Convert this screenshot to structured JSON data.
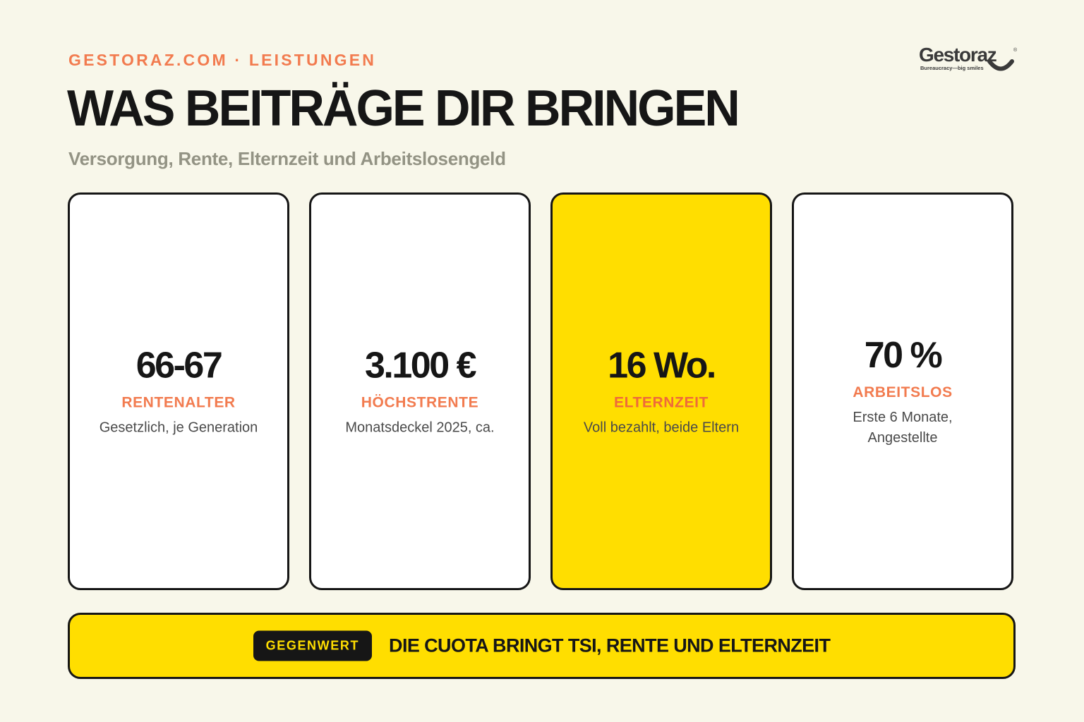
{
  "header": {
    "eyebrow": "GESTORAZ.COM · LEISTUNGEN",
    "title": "WAS BEITRÄGE DIR BRINGEN",
    "subtitle": "Versorgung, Rente, Elternzeit und Arbeitslosengeld"
  },
  "logo": {
    "wordmark": "Gestoraz",
    "tagline": "Bureaucracy—big smiles",
    "icon": "smile-icon",
    "registered": "®"
  },
  "cards": [
    {
      "value": "66-67",
      "label": "RENTENALTER",
      "desc": "Gesetzlich, je Generation",
      "highlighted": false
    },
    {
      "value": "3.100 €",
      "label": "HÖCHSTRENTE",
      "desc": "Monatsdeckel 2025, ca.",
      "highlighted": false
    },
    {
      "value": "16 Wo.",
      "label": "ELTERNZEIT",
      "desc": "Voll bezahlt, beide Eltern",
      "highlighted": true
    },
    {
      "value": "70 %",
      "label": "ARBEITSLOS",
      "desc": "Erste 6 Monate, Angestellte",
      "highlighted": false
    }
  ],
  "banner": {
    "badge": "GEGENWERT",
    "text": "DIE CUOTA BRINGT TSI, RENTE UND ELTERNZEIT"
  },
  "colors": {
    "background": "#f8f7ea",
    "accent": "#f27b4f",
    "highlight": "#ffde00",
    "ink": "#161616",
    "muted": "#939384"
  }
}
